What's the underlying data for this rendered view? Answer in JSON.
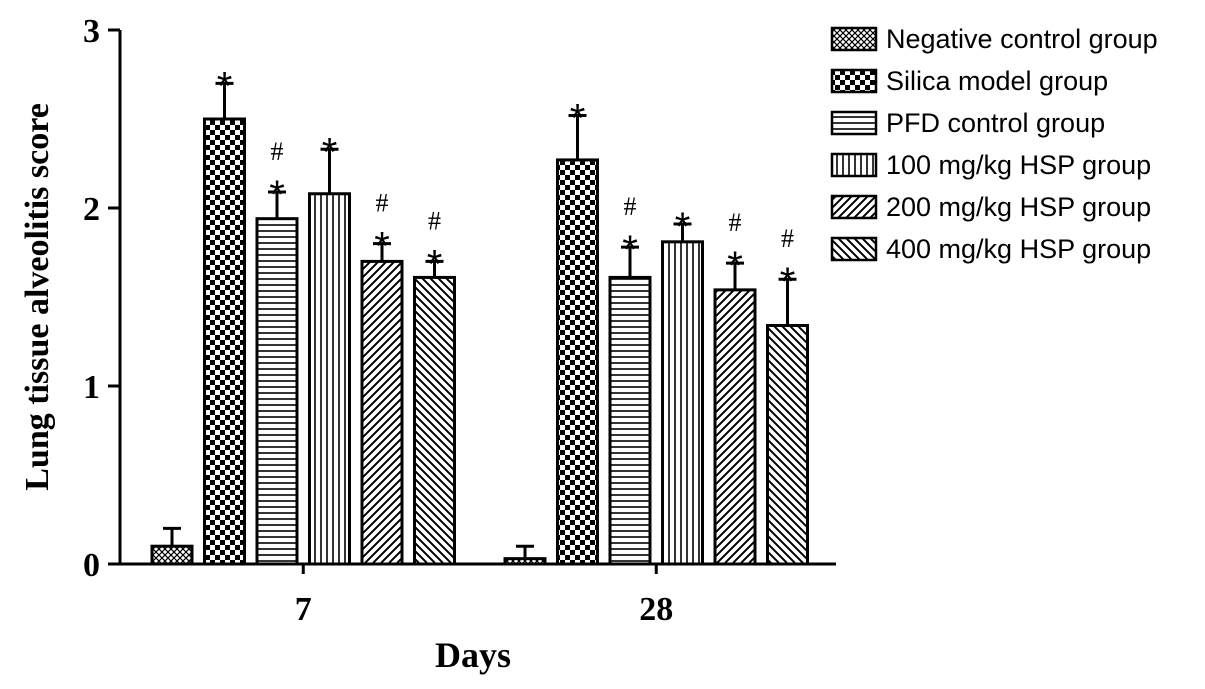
{
  "chart_data": {
    "type": "bar",
    "title": "",
    "xlabel": "Days",
    "ylabel": "Lung tissue alveolitis score",
    "ylim": [
      0,
      3
    ],
    "yticks": [
      "0",
      "1",
      "2",
      "3"
    ],
    "categories": [
      "7",
      "28"
    ],
    "legend_position": "top-right",
    "series": [
      {
        "name": "Negative control group",
        "pattern": "fine-crosshatch",
        "values": [
          0.1,
          0.03
        ],
        "errors": [
          0.1,
          0.07
        ],
        "annotations": [
          "",
          ""
        ]
      },
      {
        "name": "Silica model group",
        "pattern": "checkerboard",
        "values": [
          2.5,
          2.27
        ],
        "errors": [
          0.2,
          0.25
        ],
        "annotations": [
          "*",
          "*"
        ]
      },
      {
        "name": "PFD control group",
        "pattern": "horizontal-lines",
        "values": [
          1.94,
          1.61
        ],
        "errors": [
          0.15,
          0.17
        ],
        "annotations": [
          "*#",
          "*#"
        ]
      },
      {
        "name": "100 mg/kg HSP group",
        "pattern": "vertical-lines",
        "values": [
          2.08,
          1.81
        ],
        "errors": [
          0.25,
          0.1
        ],
        "annotations": [
          "*",
          "*"
        ]
      },
      {
        "name": "200 mg/kg HSP group",
        "pattern": "forward-diagonal",
        "values": [
          1.7,
          1.54
        ],
        "errors": [
          0.1,
          0.15
        ],
        "annotations": [
          "*#",
          "*#"
        ]
      },
      {
        "name": "400 mg/kg HSP group",
        "pattern": "backward-diagonal",
        "values": [
          1.61,
          1.34
        ],
        "errors": [
          0.09,
          0.26
        ],
        "annotations": [
          "*#",
          "*#"
        ]
      }
    ]
  }
}
